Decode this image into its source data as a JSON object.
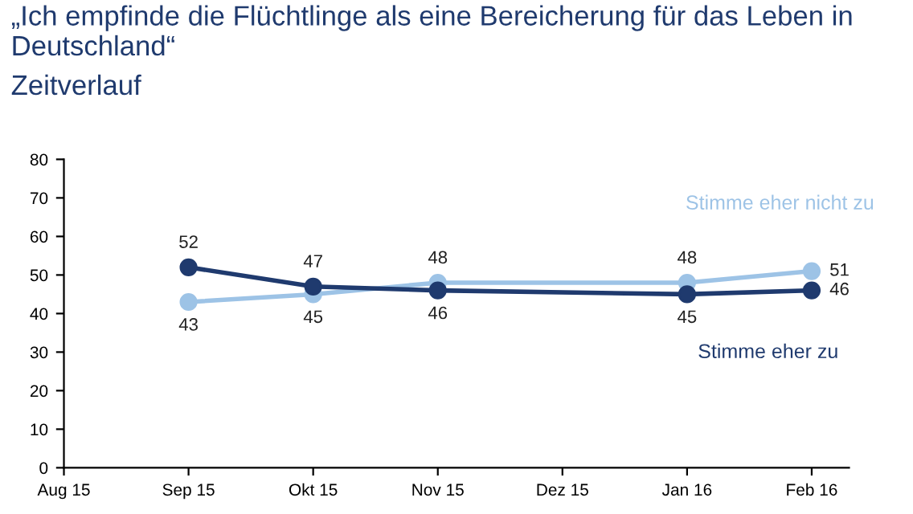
{
  "chart_data": {
    "type": "line",
    "title": "„Ich empfinde die Flüchtlinge als eine Bereicherung für das Leben in Deutschland“",
    "subtitle": "Zeitverlauf",
    "categories": [
      "Aug 15",
      "Sep 15",
      "Okt 15",
      "Nov 15",
      "Dez 15",
      "Jan 16",
      "Feb 16"
    ],
    "series": [
      {
        "name": "Stimme eher nicht zu",
        "color": "#9dc3e6",
        "values": [
          null,
          43,
          45,
          48,
          null,
          48,
          51
        ]
      },
      {
        "name": "Stimme eher zu",
        "color": "#1f3a6e",
        "values": [
          null,
          52,
          47,
          46,
          null,
          45,
          46
        ]
      }
    ],
    "ylim": [
      0,
      80
    ],
    "yticks": [
      0,
      10,
      20,
      30,
      40,
      50,
      60,
      70,
      80
    ],
    "grid": false,
    "legend": false,
    "marker": "circle",
    "line_style": "solid",
    "data_labels": true
  }
}
